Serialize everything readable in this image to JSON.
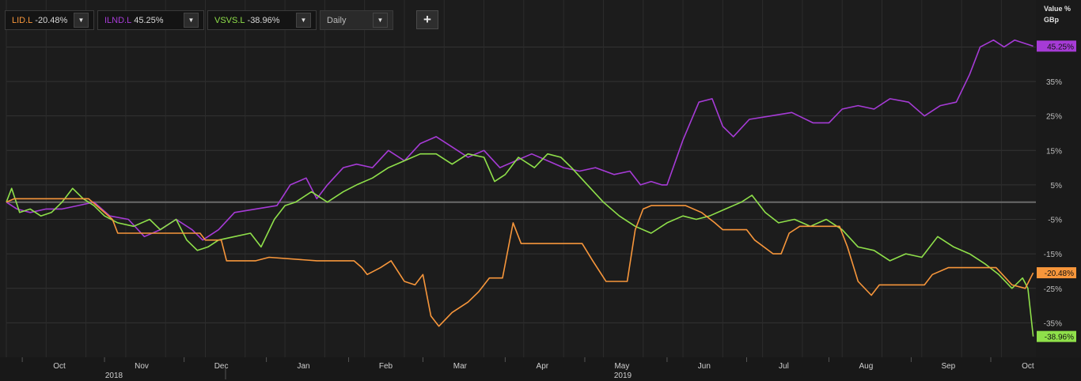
{
  "toolbar": {
    "instruments": [
      {
        "symbol": "LID.L",
        "change": "-20.48%",
        "color": "#f7963b"
      },
      {
        "symbol": "ILND.L",
        "change": "45.25%",
        "color": "#a63bd6"
      },
      {
        "symbol": "VSVS.L",
        "change": "-38.96%",
        "color": "#8fe04a"
      }
    ],
    "interval": "Daily",
    "add_label": "+"
  },
  "axis": {
    "unit_top": "Value %",
    "unit_bottom": "GBp"
  },
  "chart_data": {
    "type": "line",
    "y_ticks": [
      45,
      35,
      25,
      15,
      5,
      -5,
      -15,
      -25,
      -35
    ],
    "ylim": [
      -45,
      49
    ],
    "ytick_format": "%",
    "x_months": [
      "Oct",
      "Nov",
      "Dec",
      "Jan",
      "Feb",
      "Mar",
      "Apr",
      "May",
      "Jun",
      "Jul",
      "Aug",
      "Sep",
      "Oct"
    ],
    "x_years": [
      "2018",
      "2019"
    ],
    "x_start": "2018-09-25",
    "x_end": "2019-10-18",
    "grid": true,
    "baseline": 0,
    "series": [
      {
        "name": "ILND.L",
        "color": "#a63bd6",
        "last_label": "45.25%",
        "points": [
          [
            "2018-09-25",
            0
          ],
          [
            "2018-09-29",
            -2
          ],
          [
            "2018-10-04",
            -3
          ],
          [
            "2018-10-10",
            -2
          ],
          [
            "2018-10-16",
            -2
          ],
          [
            "2018-10-22",
            -1
          ],
          [
            "2018-10-28",
            0
          ],
          [
            "2018-11-03",
            -4
          ],
          [
            "2018-11-10",
            -5
          ],
          [
            "2018-11-16",
            -10
          ],
          [
            "2018-11-22",
            -8
          ],
          [
            "2018-11-28",
            -5
          ],
          [
            "2018-12-04",
            -8
          ],
          [
            "2018-12-08",
            -11
          ],
          [
            "2018-12-14",
            -8
          ],
          [
            "2018-12-20",
            -3
          ],
          [
            "2018-12-28",
            -2
          ],
          [
            "2019-01-05",
            -1
          ],
          [
            "2019-01-10",
            5
          ],
          [
            "2019-01-16",
            7
          ],
          [
            "2019-01-20",
            1
          ],
          [
            "2019-01-24",
            5
          ],
          [
            "2019-01-30",
            10
          ],
          [
            "2019-02-04",
            11
          ],
          [
            "2019-02-10",
            10
          ],
          [
            "2019-02-16",
            15
          ],
          [
            "2019-02-22",
            12
          ],
          [
            "2019-02-28",
            17
          ],
          [
            "2019-03-06",
            19
          ],
          [
            "2019-03-12",
            16
          ],
          [
            "2019-03-18",
            13
          ],
          [
            "2019-03-24",
            15
          ],
          [
            "2019-03-30",
            10
          ],
          [
            "2019-04-05",
            12
          ],
          [
            "2019-04-11",
            14
          ],
          [
            "2019-04-17",
            12
          ],
          [
            "2019-04-23",
            10
          ],
          [
            "2019-04-29",
            9
          ],
          [
            "2019-05-05",
            10
          ],
          [
            "2019-05-12",
            8
          ],
          [
            "2019-05-18",
            9
          ],
          [
            "2019-05-22",
            5
          ],
          [
            "2019-05-26",
            6
          ],
          [
            "2019-05-30",
            5
          ],
          [
            "2019-06-01",
            5
          ],
          [
            "2019-06-07",
            18
          ],
          [
            "2019-06-13",
            29
          ],
          [
            "2019-06-18",
            30
          ],
          [
            "2019-06-22",
            22
          ],
          [
            "2019-06-26",
            19
          ],
          [
            "2019-07-02",
            24
          ],
          [
            "2019-07-10",
            25
          ],
          [
            "2019-07-18",
            26
          ],
          [
            "2019-07-26",
            23
          ],
          [
            "2019-08-01",
            23
          ],
          [
            "2019-08-06",
            27
          ],
          [
            "2019-08-12",
            28
          ],
          [
            "2019-08-18",
            27
          ],
          [
            "2019-08-24",
            30
          ],
          [
            "2019-08-31",
            29
          ],
          [
            "2019-09-06",
            25
          ],
          [
            "2019-09-12",
            28
          ],
          [
            "2019-09-18",
            29
          ],
          [
            "2019-09-23",
            37
          ],
          [
            "2019-09-27",
            45
          ],
          [
            "2019-10-02",
            47
          ],
          [
            "2019-10-06",
            45
          ],
          [
            "2019-10-10",
            47
          ],
          [
            "2019-10-14",
            46
          ],
          [
            "2019-10-17",
            45.25
          ]
        ]
      },
      {
        "name": "VSVS.L",
        "color": "#8fe04a",
        "last_label": "-38.96%",
        "points": [
          [
            "2018-09-25",
            0
          ],
          [
            "2018-09-27",
            4
          ],
          [
            "2018-09-30",
            -3
          ],
          [
            "2018-10-04",
            -2
          ],
          [
            "2018-10-08",
            -4
          ],
          [
            "2018-10-12",
            -3
          ],
          [
            "2018-10-16",
            0
          ],
          [
            "2018-10-20",
            4
          ],
          [
            "2018-10-24",
            1
          ],
          [
            "2018-10-28",
            -1
          ],
          [
            "2018-11-01",
            -4
          ],
          [
            "2018-11-06",
            -6
          ],
          [
            "2018-11-12",
            -7
          ],
          [
            "2018-11-18",
            -5
          ],
          [
            "2018-11-22",
            -8
          ],
          [
            "2018-11-28",
            -5
          ],
          [
            "2018-12-02",
            -11
          ],
          [
            "2018-12-06",
            -14
          ],
          [
            "2018-12-10",
            -13
          ],
          [
            "2018-12-14",
            -11
          ],
          [
            "2018-12-20",
            -10
          ],
          [
            "2018-12-26",
            -9
          ],
          [
            "2018-12-30",
            -13
          ],
          [
            "2019-01-04",
            -5
          ],
          [
            "2019-01-08",
            -1
          ],
          [
            "2019-01-12",
            0
          ],
          [
            "2019-01-18",
            3
          ],
          [
            "2019-01-24",
            0
          ],
          [
            "2019-01-30",
            3
          ],
          [
            "2019-02-04",
            5
          ],
          [
            "2019-02-10",
            7
          ],
          [
            "2019-02-16",
            10
          ],
          [
            "2019-02-22",
            12
          ],
          [
            "2019-02-28",
            14
          ],
          [
            "2019-03-06",
            14
          ],
          [
            "2019-03-12",
            11
          ],
          [
            "2019-03-18",
            14
          ],
          [
            "2019-03-24",
            13
          ],
          [
            "2019-03-28",
            6
          ],
          [
            "2019-04-01",
            8
          ],
          [
            "2019-04-06",
            13
          ],
          [
            "2019-04-12",
            10
          ],
          [
            "2019-04-17",
            14
          ],
          [
            "2019-04-22",
            13
          ],
          [
            "2019-04-26",
            10
          ],
          [
            "2019-05-02",
            5
          ],
          [
            "2019-05-08",
            0
          ],
          [
            "2019-05-14",
            -4
          ],
          [
            "2019-05-20",
            -7
          ],
          [
            "2019-05-26",
            -9
          ],
          [
            "2019-06-01",
            -6
          ],
          [
            "2019-06-07",
            -4
          ],
          [
            "2019-06-12",
            -5
          ],
          [
            "2019-06-17",
            -4
          ],
          [
            "2019-06-23",
            -2
          ],
          [
            "2019-06-29",
            0
          ],
          [
            "2019-07-03",
            2
          ],
          [
            "2019-07-08",
            -3
          ],
          [
            "2019-07-13",
            -6
          ],
          [
            "2019-07-19",
            -5
          ],
          [
            "2019-07-25",
            -7
          ],
          [
            "2019-07-31",
            -5
          ],
          [
            "2019-08-06",
            -8
          ],
          [
            "2019-08-12",
            -13
          ],
          [
            "2019-08-18",
            -14
          ],
          [
            "2019-08-24",
            -17
          ],
          [
            "2019-08-30",
            -15
          ],
          [
            "2019-09-05",
            -16
          ],
          [
            "2019-09-11",
            -10
          ],
          [
            "2019-09-17",
            -13
          ],
          [
            "2019-09-23",
            -15
          ],
          [
            "2019-09-29",
            -18
          ],
          [
            "2019-10-04",
            -21
          ],
          [
            "2019-10-09",
            -25
          ],
          [
            "2019-10-13",
            -22
          ],
          [
            "2019-10-15",
            -25
          ],
          [
            "2019-10-17",
            -38.96
          ]
        ]
      },
      {
        "name": "LID.L",
        "color": "#f7963b",
        "last_label": "-20.48%",
        "points": [
          [
            "2018-09-25",
            0
          ],
          [
            "2018-09-28",
            1
          ],
          [
            "2018-10-20",
            1
          ],
          [
            "2018-10-26",
            1
          ],
          [
            "2018-11-04",
            -5
          ],
          [
            "2018-11-06",
            -9
          ],
          [
            "2018-11-26",
            -9
          ],
          [
            "2018-12-07",
            -9
          ],
          [
            "2018-12-09",
            -11
          ],
          [
            "2018-12-15",
            -11
          ],
          [
            "2018-12-17",
            -17
          ],
          [
            "2018-12-28",
            -17
          ],
          [
            "2019-01-02",
            -16
          ],
          [
            "2019-01-20",
            -17
          ],
          [
            "2019-02-03",
            -17
          ],
          [
            "2019-02-06",
            -19
          ],
          [
            "2019-02-08",
            -21
          ],
          [
            "2019-02-13",
            -19
          ],
          [
            "2019-02-17",
            -17
          ],
          [
            "2019-02-22",
            -23
          ],
          [
            "2019-02-26",
            -24
          ],
          [
            "2019-03-01",
            -21
          ],
          [
            "2019-03-04",
            -33
          ],
          [
            "2019-03-07",
            -36
          ],
          [
            "2019-03-12",
            -32
          ],
          [
            "2019-03-18",
            -29
          ],
          [
            "2019-03-22",
            -26
          ],
          [
            "2019-03-26",
            -22
          ],
          [
            "2019-03-31",
            -22
          ],
          [
            "2019-04-04",
            -6
          ],
          [
            "2019-04-07",
            -12
          ],
          [
            "2019-04-13",
            -12
          ],
          [
            "2019-04-20",
            -12
          ],
          [
            "2019-04-30",
            -12
          ],
          [
            "2019-05-04",
            -17
          ],
          [
            "2019-05-09",
            -23
          ],
          [
            "2019-05-17",
            -23
          ],
          [
            "2019-05-20",
            -8
          ],
          [
            "2019-05-23",
            -2
          ],
          [
            "2019-05-26",
            -1
          ],
          [
            "2019-06-08",
            -1
          ],
          [
            "2019-06-14",
            -3
          ],
          [
            "2019-06-19",
            -6
          ],
          [
            "2019-06-22",
            -8
          ],
          [
            "2019-07-01",
            -8
          ],
          [
            "2019-07-04",
            -11
          ],
          [
            "2019-07-11",
            -15
          ],
          [
            "2019-07-14",
            -15
          ],
          [
            "2019-07-17",
            -9
          ],
          [
            "2019-07-21",
            -7
          ],
          [
            "2019-08-05",
            -7
          ],
          [
            "2019-08-08",
            -13
          ],
          [
            "2019-08-12",
            -23
          ],
          [
            "2019-08-17",
            -27
          ],
          [
            "2019-08-20",
            -24
          ],
          [
            "2019-09-06",
            -24
          ],
          [
            "2019-09-09",
            -21
          ],
          [
            "2019-09-15",
            -19
          ],
          [
            "2019-10-03",
            -19
          ],
          [
            "2019-10-09",
            -24
          ],
          [
            "2019-10-14",
            -25
          ],
          [
            "2019-10-17",
            -20.48
          ]
        ]
      }
    ]
  }
}
